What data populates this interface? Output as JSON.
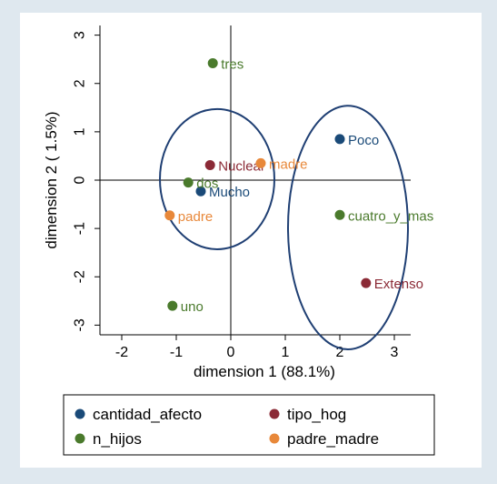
{
  "colors": {
    "page_bg": "#dfe8ef",
    "plot_bg": "#ffffff",
    "axis": "#000000",
    "ellipse": "#1f3f73",
    "cantidad_afecto": "#1a4a78",
    "tipo_hog": "#8b2a36",
    "n_hijos": "#4a7a2c",
    "padre_madre": "#e8883a"
  },
  "chart_data": {
    "type": "scatter",
    "xlabel": "dimension 1 (88.1%)",
    "ylabel": "dimension 2 ( 1.5%)",
    "xlim": [
      -2.4,
      3.3
    ],
    "ylim": [
      -3.2,
      3.2
    ],
    "xticks": [
      -2,
      -1,
      0,
      1,
      2,
      3
    ],
    "yticks": [
      -3,
      -2,
      -1,
      0,
      1,
      2,
      3
    ],
    "reference_lines": {
      "x": 0,
      "y": 0
    },
    "grid": false,
    "legend_position": "bottom",
    "series": [
      {
        "name": "cantidad_afecto",
        "color": "#1a4a78",
        "points": [
          {
            "label": "Poco",
            "x": 2.0,
            "y": 0.85
          },
          {
            "label": "Mucho",
            "x": -0.55,
            "y": -0.23
          }
        ]
      },
      {
        "name": "tipo_hog",
        "color": "#8b2a36",
        "points": [
          {
            "label": "Nuclear",
            "x": -0.38,
            "y": 0.31
          },
          {
            "label": "Extenso",
            "x": 2.48,
            "y": -2.13
          }
        ]
      },
      {
        "name": "n_hijos",
        "color": "#4a7a2c",
        "points": [
          {
            "label": "tres",
            "x": -0.33,
            "y": 2.42
          },
          {
            "label": "dos",
            "x": -0.78,
            "y": -0.05
          },
          {
            "label": "cuatro_y_mas",
            "x": 2.0,
            "y": -0.72
          },
          {
            "label": "uno",
            "x": -1.07,
            "y": -2.6
          }
        ]
      },
      {
        "name": "padre_madre",
        "color": "#e8883a",
        "points": [
          {
            "label": "madre",
            "x": 0.55,
            "y": 0.35
          },
          {
            "label": "padre",
            "x": -1.12,
            "y": -0.73
          }
        ]
      }
    ],
    "ellipses": [
      {
        "cx": -0.25,
        "cy": 0.02,
        "rx": 1.05,
        "ry": 1.45
      },
      {
        "cx": 2.15,
        "cy": -0.98,
        "rx": 1.1,
        "ry": 2.52
      }
    ]
  }
}
